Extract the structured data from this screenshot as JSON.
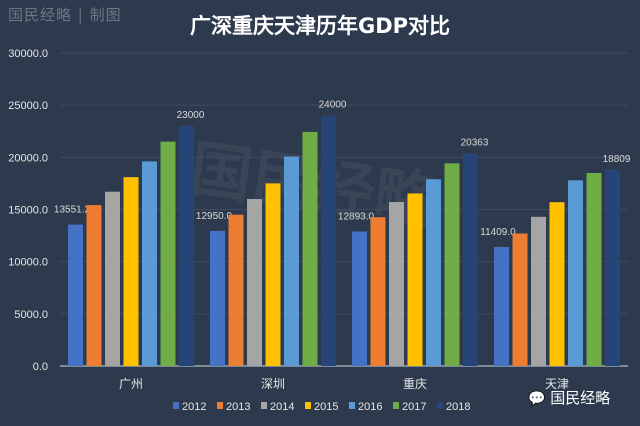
{
  "watermark_top": "国民经略 | 制图",
  "watermark_center": "国民经略",
  "watermark_bottom": "国民经略",
  "chart_data": {
    "type": "bar",
    "title": "广深重庆天津历年GDP对比",
    "categories": [
      "广州",
      "深圳",
      "重庆",
      "天津"
    ],
    "ylim": [
      0,
      30000
    ],
    "yticks": [
      "0.0",
      "5000.0",
      "10000.0",
      "15000.0",
      "20000.0",
      "25000.0",
      "30000.0"
    ],
    "grid": true,
    "legend_position": "bottom",
    "series": [
      {
        "name": "2012",
        "color": "#4472c4",
        "values": [
          13551.2,
          12950.0,
          12893.0,
          11409.0
        ]
      },
      {
        "name": "2013",
        "color": "#ed7d31",
        "values": [
          15420,
          14500,
          14263,
          12700
        ]
      },
      {
        "name": "2014",
        "color": "#a5a5a5",
        "values": [
          16707,
          16002,
          15717,
          14300
        ]
      },
      {
        "name": "2015",
        "color": "#ffc000",
        "values": [
          18100,
          17503,
          16539,
          15700
        ]
      },
      {
        "name": "2016",
        "color": "#5b9bd5",
        "values": [
          19610,
          20079,
          17900,
          17800
        ]
      },
      {
        "name": "2017",
        "color": "#70ad47",
        "values": [
          21503,
          22438,
          19425,
          18500
        ]
      },
      {
        "name": "2018",
        "color": "#264478",
        "values": [
          23000,
          24000,
          20363,
          18809
        ]
      }
    ],
    "data_labels": {
      "2012": [
        "13551.2",
        "12950.0",
        "12893.0",
        "11409.0"
      ],
      "2018": [
        "23000",
        "24000",
        "20363",
        "18809"
      ]
    }
  }
}
